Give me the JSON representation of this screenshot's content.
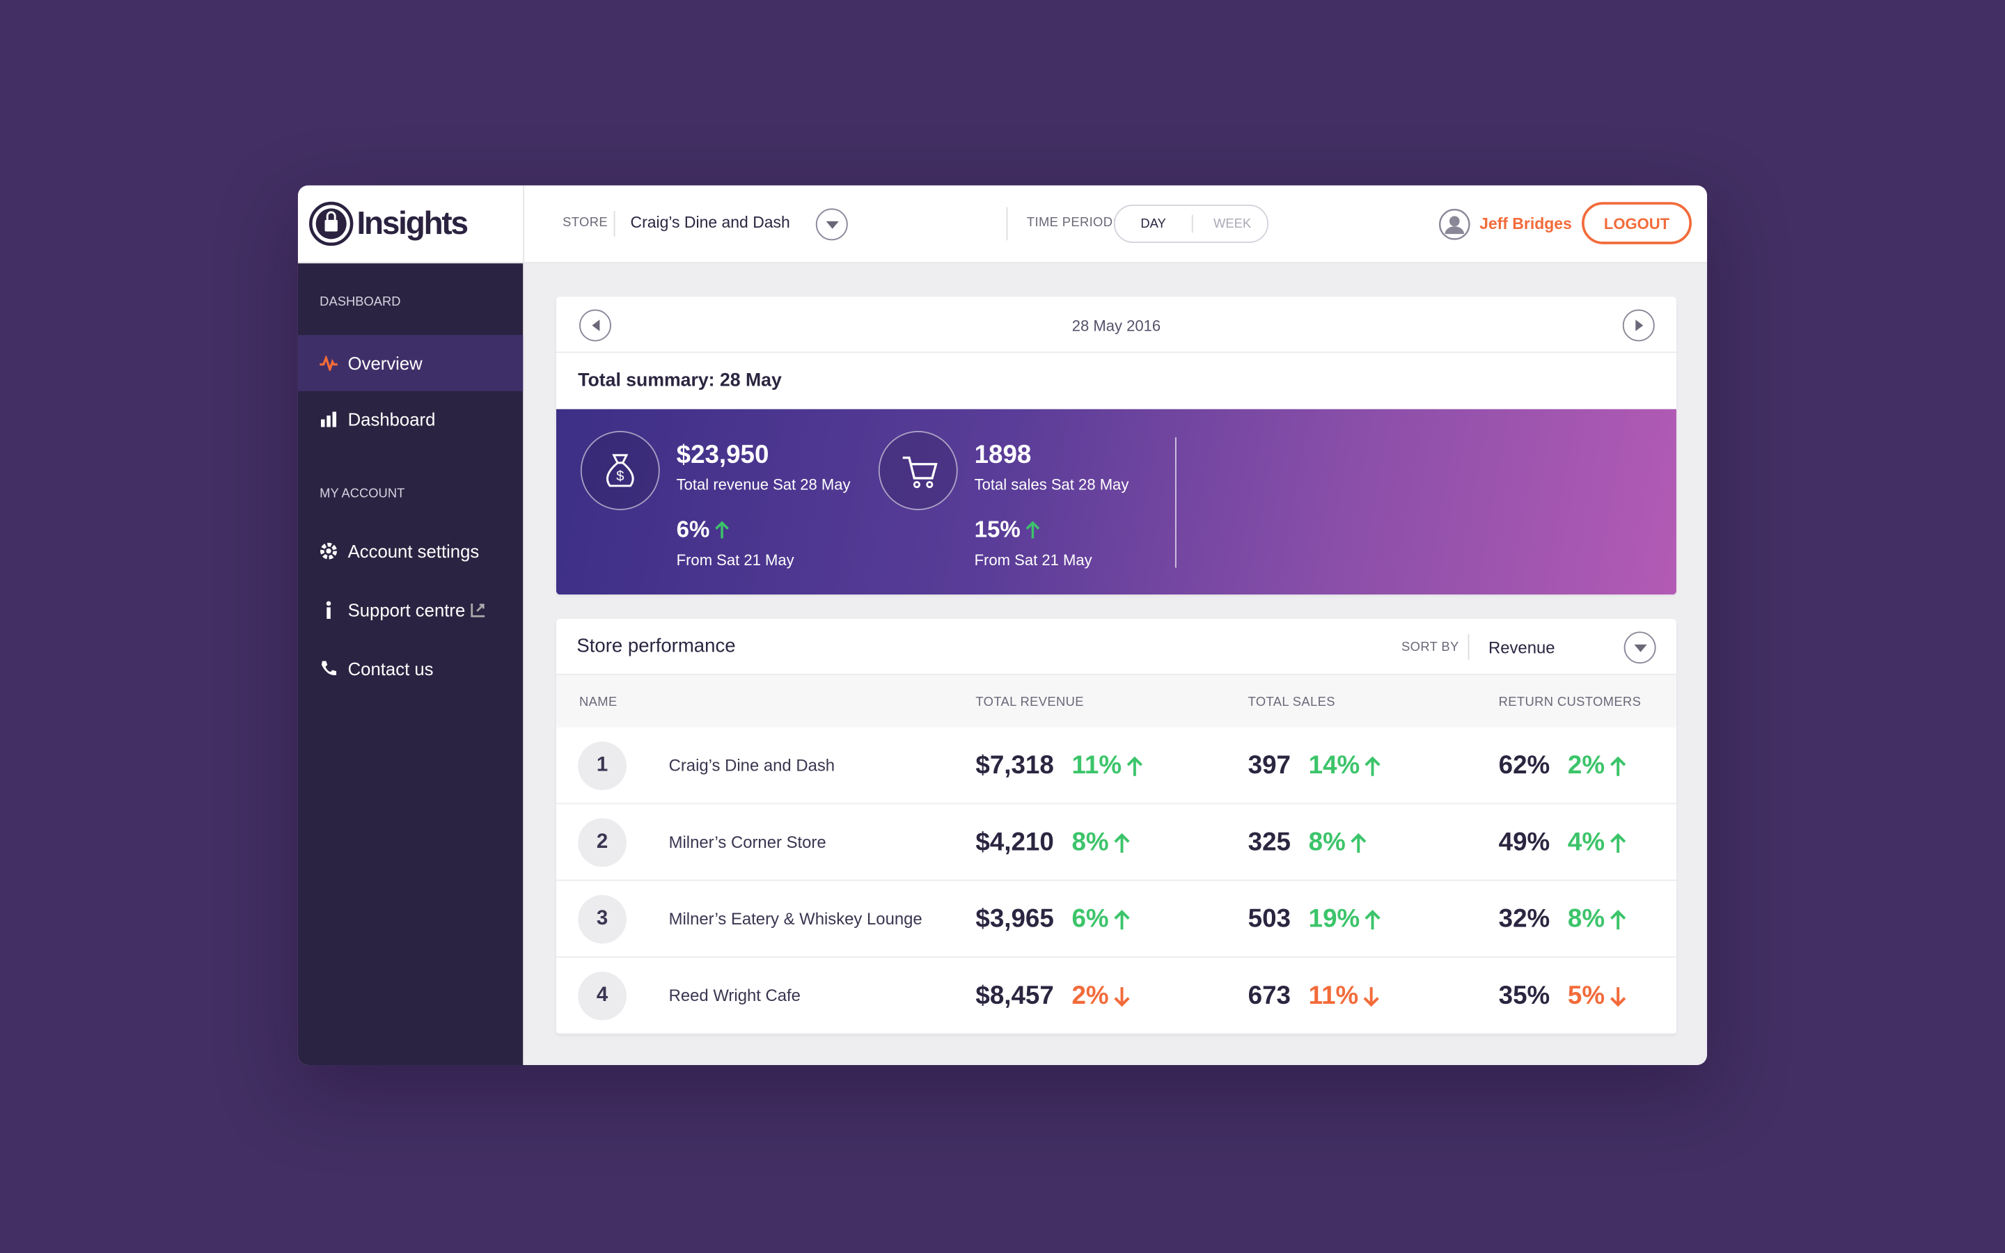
{
  "header": {
    "logo": "Insights",
    "store_label": "STORE",
    "store": "Craig’s Dine and Dash",
    "time_period_label": "TIME PERIOD:",
    "periods": [
      "DAY",
      "WEEK"
    ],
    "user": "Jeff Bridges",
    "logout": "LOGOUT"
  },
  "sidebar": {
    "sections": [
      {
        "title": "DASHBOARD",
        "items": [
          "Overview",
          "Dashboard"
        ]
      },
      {
        "title": "MY ACCOUNT",
        "items": [
          "Account settings",
          "Support centre",
          "Contact us"
        ]
      }
    ]
  },
  "date_nav": {
    "date": "28 May 2016"
  },
  "summary": {
    "title": "Total summary: 28 May",
    "cards": [
      {
        "value": "$23,950",
        "label": "Total revenue Sat 28 May",
        "change": {
          "text": "6%",
          "trend": "up"
        },
        "change_label": "From Sat 21 May"
      },
      {
        "value": "1898",
        "label": "Total sales Sat 28 May",
        "change": {
          "text": "15%",
          "trend": "up"
        },
        "change_label": "From Sat 21 May"
      }
    ]
  },
  "performance": {
    "title": "Store performance",
    "sort_label": "SORT BY",
    "sort_value": "Revenue",
    "columns": [
      "NAME",
      "TOTAL REVENUE",
      "TOTAL SALES",
      "RETURN CUSTOMERS"
    ],
    "rows": [
      {
        "rank": "1",
        "name": "Craig’s Dine and Dash",
        "revenue": "$7,318",
        "revenue_change": {
          "text": "11%",
          "trend": "up"
        },
        "sales": "397",
        "sales_change": {
          "text": "14%",
          "trend": "up"
        },
        "return": "62%",
        "return_change": {
          "text": "2%",
          "trend": "up"
        }
      },
      {
        "rank": "2",
        "name": "Milner’s Corner Store",
        "revenue": "$4,210",
        "revenue_change": {
          "text": "8%",
          "trend": "up"
        },
        "sales": "325",
        "sales_change": {
          "text": "8%",
          "trend": "up"
        },
        "return": "49%",
        "return_change": {
          "text": "4%",
          "trend": "up"
        }
      },
      {
        "rank": "3",
        "name": "Milner’s Eatery & Whiskey Lounge",
        "revenue": "$3,965",
        "revenue_change": {
          "text": "6%",
          "trend": "up"
        },
        "sales": "503",
        "sales_change": {
          "text": "19%",
          "trend": "up"
        },
        "return": "32%",
        "return_change": {
          "text": "8%",
          "trend": "up"
        }
      },
      {
        "rank": "4",
        "name": "Reed Wright Cafe",
        "revenue": "$8,457",
        "revenue_change": {
          "text": "2%",
          "trend": "down"
        },
        "sales": "673",
        "sales_change": {
          "text": "11%",
          "trend": "down"
        },
        "return": "35%",
        "return_change": {
          "text": "5%",
          "trend": "down"
        }
      }
    ]
  }
}
